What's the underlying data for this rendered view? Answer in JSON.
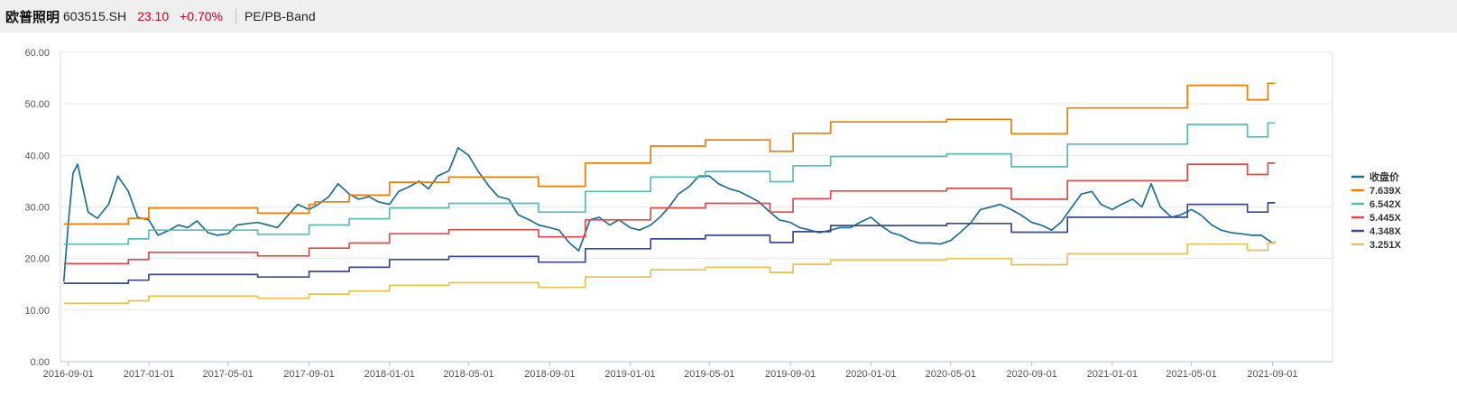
{
  "header": {
    "stock_name": "欧普照明",
    "stock_code": "603515.SH",
    "price": "23.10",
    "change": "+0.70%",
    "tab_label": "PE/PB-Band"
  },
  "chart_data": {
    "type": "line",
    "title": "",
    "xlabel": "",
    "ylabel": "",
    "ylim": [
      0,
      60
    ],
    "y_ticks": [
      "0.00",
      "10.00",
      "20.00",
      "30.00",
      "40.00",
      "50.00",
      "60.00"
    ],
    "x_ticks": [
      "2016-09-01",
      "2017-01-01",
      "2017-05-01",
      "2017-09-01",
      "2018-01-01",
      "2018-05-01",
      "2018-09-01",
      "2019-01-01",
      "2019-05-01",
      "2019-09-01",
      "2020-01-01",
      "2020-05-01",
      "2020-09-01",
      "2021-01-01",
      "2021-05-01",
      "2021-09-01"
    ],
    "xlim": [
      "2016-08-20",
      "2021-12-01"
    ],
    "grid": "horizontal",
    "legend_position": "right",
    "series": [
      {
        "name": "收盘价",
        "color": "#1f6e96",
        "x": [
          "2016-08-25",
          "2016-09-01",
          "2016-09-08",
          "2016-09-15",
          "2016-10-01",
          "2016-10-15",
          "2016-11-01",
          "2016-11-15",
          "2016-12-01",
          "2016-12-15",
          "2017-01-01",
          "2017-01-15",
          "2017-02-01",
          "2017-02-15",
          "2017-03-01",
          "2017-03-15",
          "2017-04-01",
          "2017-04-15",
          "2017-05-01",
          "2017-05-15",
          "2017-06-01",
          "2017-06-15",
          "2017-07-01",
          "2017-07-15",
          "2017-08-01",
          "2017-08-15",
          "2017-09-01",
          "2017-09-15",
          "2017-10-01",
          "2017-10-15",
          "2017-11-01",
          "2017-11-15",
          "2017-12-01",
          "2017-12-15",
          "2018-01-01",
          "2018-01-15",
          "2018-02-01",
          "2018-02-15",
          "2018-03-01",
          "2018-03-15",
          "2018-04-01",
          "2018-04-15",
          "2018-05-01",
          "2018-05-15",
          "2018-06-01",
          "2018-06-15",
          "2018-07-01",
          "2018-07-15",
          "2018-08-01",
          "2018-08-15",
          "2018-09-01",
          "2018-09-15",
          "2018-10-01",
          "2018-10-15",
          "2018-11-01",
          "2018-11-15",
          "2018-12-01",
          "2018-12-15",
          "2019-01-01",
          "2019-01-15",
          "2019-02-01",
          "2019-02-15",
          "2019-03-01",
          "2019-03-15",
          "2019-04-01",
          "2019-04-15",
          "2019-05-01",
          "2019-05-15",
          "2019-06-01",
          "2019-06-15",
          "2019-07-01",
          "2019-07-15",
          "2019-08-01",
          "2019-08-15",
          "2019-09-01",
          "2019-09-15",
          "2019-10-01",
          "2019-10-15",
          "2019-11-01",
          "2019-11-15",
          "2019-12-01",
          "2019-12-15",
          "2020-01-01",
          "2020-01-15",
          "2020-02-01",
          "2020-02-15",
          "2020-03-01",
          "2020-03-15",
          "2020-04-01",
          "2020-04-15",
          "2020-05-01",
          "2020-05-15",
          "2020-06-01",
          "2020-06-15",
          "2020-07-01",
          "2020-07-15",
          "2020-08-01",
          "2020-08-15",
          "2020-09-01",
          "2020-09-15",
          "2020-10-01",
          "2020-10-15",
          "2020-11-01",
          "2020-11-15",
          "2020-12-01",
          "2020-12-15",
          "2021-01-01",
          "2021-01-15",
          "2021-02-01",
          "2021-02-15",
          "2021-03-01",
          "2021-03-15",
          "2021-04-01",
          "2021-04-15",
          "2021-05-01",
          "2021-05-15",
          "2021-06-01",
          "2021-06-15",
          "2021-07-01",
          "2021-07-15",
          "2021-08-01",
          "2021-08-15",
          "2021-09-01",
          "2021-09-05"
        ],
        "values": [
          15.5,
          27.0,
          36.5,
          38.3,
          29.0,
          27.8,
          30.5,
          36.0,
          33.0,
          28.0,
          27.5,
          24.5,
          25.5,
          26.5,
          26.0,
          27.3,
          25.0,
          24.5,
          24.8,
          26.5,
          26.8,
          27.0,
          26.5,
          26.0,
          28.5,
          30.5,
          29.5,
          30.5,
          32.0,
          34.5,
          32.5,
          31.5,
          32.0,
          31.0,
          30.5,
          33.0,
          34.0,
          35.0,
          33.5,
          36.0,
          37.0,
          41.5,
          40.0,
          37.0,
          34.0,
          32.0,
          31.5,
          28.5,
          27.5,
          26.5,
          26.0,
          25.5,
          23.0,
          21.5,
          27.5,
          28.0,
          26.5,
          27.5,
          26.0,
          25.5,
          26.5,
          28.0,
          30.0,
          32.5,
          34.0,
          36.0,
          36.0,
          34.5,
          33.5,
          33.0,
          32.0,
          31.0,
          29.0,
          27.5,
          27.0,
          26.0,
          25.5,
          25.0,
          25.5,
          26.0,
          26.0,
          27.0,
          28.0,
          26.5,
          25.0,
          24.5,
          23.5,
          23.0,
          23.0,
          22.8,
          23.5,
          25.0,
          27.0,
          29.5,
          30.0,
          30.5,
          29.5,
          28.5,
          27.0,
          26.5,
          25.5,
          27.0,
          30.0,
          32.5,
          33.0,
          30.5,
          29.5,
          30.5,
          31.5,
          30.0,
          34.5,
          30.0,
          28.0,
          28.5,
          29.5,
          28.5,
          26.5,
          25.5,
          25.0,
          24.8,
          24.5,
          24.5,
          23.0,
          23.1
        ]
      },
      {
        "name": "7.639X",
        "color": "#f07c00",
        "x": [
          "2016-08-25",
          "2016-12-01",
          "2017-01-01",
          "2017-06-15",
          "2017-09-01",
          "2017-09-10",
          "2017-11-01",
          "2018-01-01",
          "2018-04-01",
          "2018-08-15",
          "2018-10-25",
          "2019-02-01",
          "2019-04-25",
          "2019-08-01",
          "2019-09-05",
          "2019-11-01",
          "2020-04-25",
          "2020-08-01",
          "2020-10-25",
          "2021-04-25",
          "2021-07-25",
          "2021-08-25",
          "2021-09-05"
        ],
        "values": [
          26.7,
          27.8,
          29.8,
          28.8,
          30.5,
          31.0,
          32.3,
          34.8,
          35.8,
          34.0,
          38.5,
          41.8,
          43.0,
          40.8,
          44.3,
          46.5,
          47.0,
          44.2,
          49.2,
          53.6,
          50.8,
          54.0,
          54.0
        ]
      },
      {
        "name": "6.542X",
        "color": "#55bdb6",
        "x": [
          "2016-08-25",
          "2016-12-01",
          "2017-01-01",
          "2017-06-15",
          "2017-09-01",
          "2017-11-01",
          "2018-01-01",
          "2018-04-01",
          "2018-08-15",
          "2018-10-25",
          "2019-02-01",
          "2019-04-25",
          "2019-08-01",
          "2019-09-05",
          "2019-11-01",
          "2020-04-25",
          "2020-08-01",
          "2020-10-25",
          "2021-04-25",
          "2021-07-25",
          "2021-08-25",
          "2021-09-05"
        ],
        "values": [
          22.8,
          23.8,
          25.5,
          24.7,
          26.5,
          27.7,
          29.8,
          30.7,
          29.0,
          33.0,
          35.8,
          36.9,
          34.9,
          38.0,
          39.8,
          40.3,
          37.8,
          42.2,
          46.0,
          43.6,
          46.3,
          46.3
        ]
      },
      {
        "name": "5.445X",
        "color": "#e04a4a",
        "x": [
          "2016-08-25",
          "2016-12-01",
          "2017-01-01",
          "2017-06-15",
          "2017-09-01",
          "2017-11-01",
          "2018-01-01",
          "2018-04-01",
          "2018-08-15",
          "2018-10-25",
          "2019-02-01",
          "2019-04-25",
          "2019-08-01",
          "2019-09-05",
          "2019-11-01",
          "2020-04-25",
          "2020-08-01",
          "2020-10-25",
          "2021-04-25",
          "2021-07-25",
          "2021-08-25",
          "2021-09-05"
        ],
        "values": [
          19.0,
          19.8,
          21.2,
          20.5,
          22.0,
          23.0,
          24.8,
          25.6,
          24.2,
          27.5,
          29.8,
          30.7,
          29.0,
          31.6,
          33.1,
          33.6,
          31.5,
          35.1,
          38.3,
          36.3,
          38.5,
          38.5
        ]
      },
      {
        "name": "4.348X",
        "color": "#3a4a8a",
        "x": [
          "2016-08-25",
          "2016-12-01",
          "2017-01-01",
          "2017-06-15",
          "2017-09-01",
          "2017-11-01",
          "2018-01-01",
          "2018-04-01",
          "2018-08-15",
          "2018-10-25",
          "2019-02-01",
          "2019-04-25",
          "2019-08-01",
          "2019-09-05",
          "2019-11-01",
          "2020-04-25",
          "2020-08-01",
          "2020-10-25",
          "2021-04-25",
          "2021-07-25",
          "2021-08-25",
          "2021-09-05"
        ],
        "values": [
          15.2,
          15.8,
          16.9,
          16.4,
          17.5,
          18.3,
          19.8,
          20.4,
          19.3,
          21.9,
          23.8,
          24.5,
          23.1,
          25.2,
          26.4,
          26.8,
          25.1,
          28.0,
          30.5,
          29.0,
          30.8,
          30.8
        ]
      },
      {
        "name": "3.251X",
        "color": "#e8c24a",
        "x": [
          "2016-08-25",
          "2016-12-01",
          "2017-01-01",
          "2017-06-15",
          "2017-09-01",
          "2017-11-01",
          "2018-01-01",
          "2018-04-01",
          "2018-08-15",
          "2018-10-25",
          "2019-02-01",
          "2019-04-25",
          "2019-08-01",
          "2019-09-05",
          "2019-11-01",
          "2020-04-25",
          "2020-08-01",
          "2020-10-25",
          "2021-04-25",
          "2021-07-25",
          "2021-08-25",
          "2021-09-05"
        ],
        "values": [
          11.3,
          11.8,
          12.7,
          12.3,
          13.1,
          13.7,
          14.8,
          15.3,
          14.4,
          16.4,
          17.8,
          18.3,
          17.3,
          18.9,
          19.7,
          20.0,
          18.8,
          20.9,
          22.8,
          21.6,
          23.0,
          23.0
        ]
      }
    ]
  }
}
